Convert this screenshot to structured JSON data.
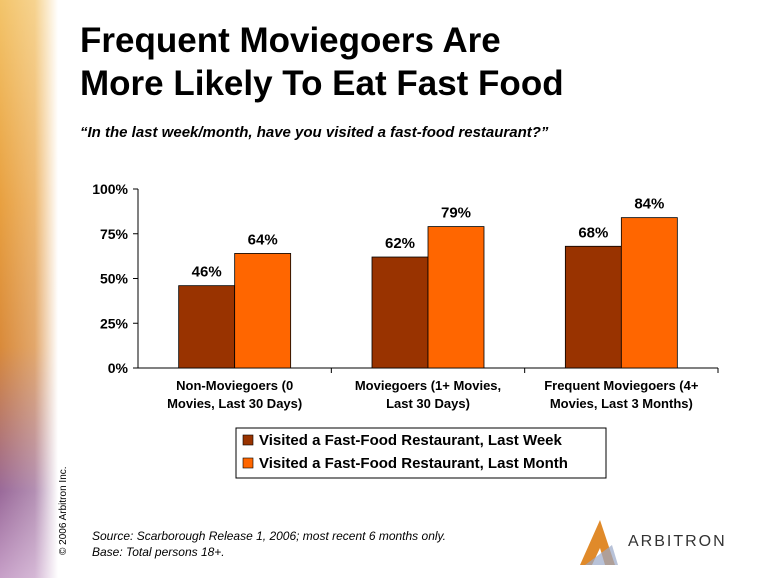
{
  "chart_data": {
    "type": "bar",
    "title": "Frequent Moviegoers Are\nMore Likely To Eat Fast Food",
    "subtitle": "“In the last week/month, have you visited a fast-food restaurant?”",
    "categories": [
      "Non-Moviegoers (0\nMovies, Last 30 Days)",
      "Moviegoers (1+ Movies,\nLast 30 Days)",
      "Frequent Moviegoers (4+\nMovies, Last 3 Months)"
    ],
    "series": [
      {
        "name": "Visited a Fast-Food Restaurant, Last Week",
        "color": "#993300",
        "values": [
          46,
          62,
          68
        ],
        "value_labels": [
          "46%",
          "62%",
          "68%"
        ]
      },
      {
        "name": "Visited a Fast-Food Restaurant, Last Month",
        "color": "#ff6600",
        "values": [
          64,
          79,
          84
        ],
        "value_labels": [
          "64%",
          "79%",
          "84%"
        ]
      }
    ],
    "ylim": [
      0,
      100
    ],
    "yticks": [
      {
        "value": 0,
        "label": "0%"
      },
      {
        "value": 25,
        "label": "25%"
      },
      {
        "value": 50,
        "label": "50%"
      },
      {
        "value": 75,
        "label": "75%"
      },
      {
        "value": 100,
        "label": "100%"
      }
    ],
    "grid": false,
    "legend": "bottom",
    "source": "Source:  Scarborough Release 1, 2006; most recent 6 months only.",
    "note": "Base:  Total persons 18+."
  },
  "copyright": "© 2006 Arbitron Inc.",
  "logo": "ARBITRON"
}
